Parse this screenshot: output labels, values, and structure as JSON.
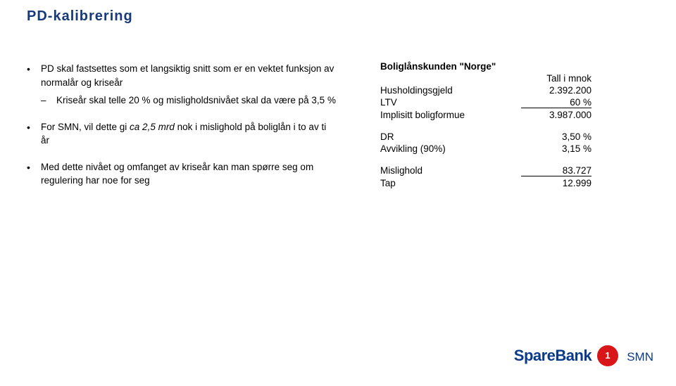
{
  "title": "PD-kalibrering",
  "bullets": {
    "b1": "PD skal fastsettes som et langsiktig snitt som er en vektet funksjon av normalår og kriseår",
    "b1_sub1": "Kriseår skal telle 20 % og misligholdsnivået skal da være på 3,5 %",
    "b2_pre": "For SMN, vil dette gi ",
    "b2_ital": "ca 2,5 mrd",
    "b2_post": " nok i mislighold på boliglån i to av ti år",
    "b3": "Med dette nivået og omfanget av kriseår kan man spørre seg om regulering har noe for seg"
  },
  "table": {
    "header": "Boliglånskunden \"Norge\"",
    "unit": "Tall i mnok",
    "rows": {
      "hushold_label": "Husholdingsgjeld",
      "hushold_val": "2.392.200",
      "ltv_label": "LTV",
      "ltv_val": "60 %",
      "implis_label": "Implisitt boligformue",
      "implis_val": "3.987.000",
      "dr_label": "DR",
      "dr_val": "3,50 %",
      "avvik_label": "Avvikling (90%)",
      "avvik_val": "3,15 %",
      "misl_label": "Mislighold",
      "misl_val": "83.727",
      "tap_label": "Tap",
      "tap_val": "12.999"
    }
  },
  "logo": {
    "brand": "SpareBank",
    "sub": "SMN",
    "badge_bg": "#d8161a",
    "brand_color": "#0a3a8a"
  },
  "colors": {
    "title": "#163a7a",
    "text": "#000000",
    "bg": "#ffffff"
  }
}
